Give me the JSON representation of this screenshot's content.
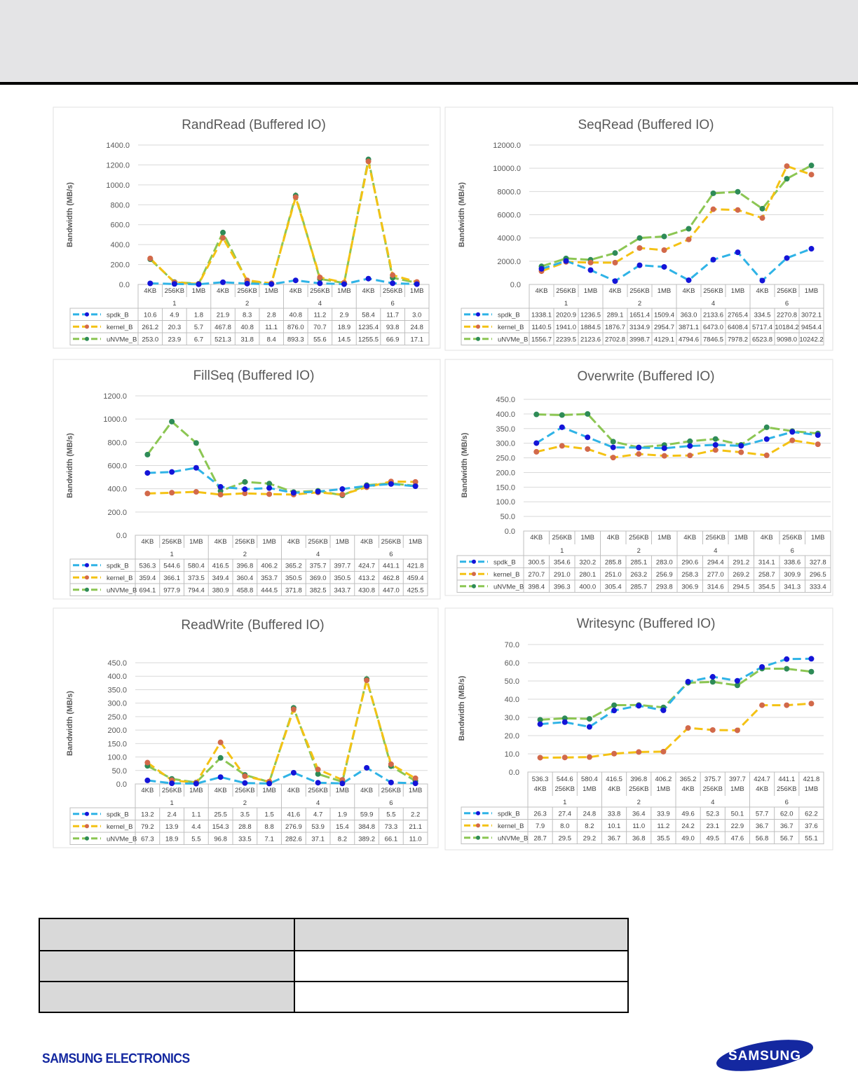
{
  "legend_series": [
    "spdk_B",
    "kernel_B",
    "uNVMe_B"
  ],
  "colors": {
    "spdk_line": "#2fb3e6",
    "spdk_marker": "#1414d8",
    "kernel_line": "#f4c214",
    "kernel_marker": "#d2694a",
    "unvme_line": "#8cc653",
    "unvme_marker": "#2e8b57"
  },
  "footer": {
    "company": "SAMSUNG ELECTRONICS",
    "logo_text": "SAMSUNG"
  },
  "chart_data": [
    {
      "type": "line",
      "title": "RandRead (Buffered IO)",
      "ylabel": "Bandwidth (MB/s)",
      "ylim": [
        0,
        1400
      ],
      "ystep": 200,
      "categories": [
        "4KB",
        "256KB",
        "1MB",
        "4KB",
        "256KB",
        "1MB",
        "4KB",
        "256KB",
        "1MB",
        "4KB",
        "256KB",
        "1MB"
      ],
      "groups": [
        "1",
        "2",
        "4",
        "6"
      ],
      "series": [
        {
          "name": "spdk_B",
          "values": [
            "10.6",
            "4.9",
            "1.8",
            "21.9",
            "8.3",
            "2.8",
            "40.8",
            "11.2",
            "2.9",
            "58.4",
            "11.7",
            "3.0"
          ]
        },
        {
          "name": "kernel_B",
          "values": [
            "261.2",
            "20.3",
            "5.7",
            "467.8",
            "40.8",
            "11.1",
            "876.0",
            "70.7",
            "18.9",
            "1235.4",
            "93.8",
            "24.8"
          ]
        },
        {
          "name": "uNVMe_B",
          "values": [
            "253.0",
            "23.9",
            "6.7",
            "521.3",
            "31.8",
            "8.4",
            "893.3",
            "55.6",
            "14.5",
            "1255.5",
            "66.9",
            "17.1"
          ]
        }
      ]
    },
    {
      "type": "line",
      "title": "SeqRead (Buffered IO)",
      "ylabel": "Bandwidth (MB/s)",
      "ylim": [
        0,
        12000
      ],
      "ystep": 2000,
      "categories": [
        "4KB",
        "256KB",
        "1MB",
        "4KB",
        "256KB",
        "1MB",
        "4KB",
        "256KB",
        "1MB",
        "4KB",
        "256KB",
        "1MB"
      ],
      "groups": [
        "1",
        "2",
        "4",
        "6"
      ],
      "series": [
        {
          "name": "spdk_B",
          "values": [
            "1338.1",
            "2020.9",
            "1236.5",
            "289.1",
            "1651.4",
            "1509.4",
            "363.0",
            "2133.6",
            "2765.4",
            "334.5",
            "2270.8",
            "3072.1"
          ]
        },
        {
          "name": "kernel_B",
          "values": [
            "1140.5",
            "1941.0",
            "1884.5",
            "1876.7",
            "3134.9",
            "2954.7",
            "3871.1",
            "6473.0",
            "6408.4",
            "5717.4",
            "10184.2",
            "9454.4"
          ]
        },
        {
          "name": "uNVMe_B",
          "values": [
            "1556.7",
            "2239.5",
            "2123.6",
            "2702.8",
            "3998.7",
            "4129.1",
            "4794.6",
            "7846.5",
            "7978.2",
            "6523.8",
            "9098.0",
            "10242.2"
          ]
        }
      ]
    },
    {
      "type": "line",
      "title": "FillSeq (Buffered IO)",
      "ylabel": "Bandwidth (MB/s)",
      "ylim": [
        0,
        1200
      ],
      "ystep": 200,
      "categories": [
        "4KB",
        "256KB",
        "1MB",
        "4KB",
        "256KB",
        "1MB",
        "4KB",
        "256KB",
        "1MB",
        "4KB",
        "256KB",
        "1MB"
      ],
      "groups": [
        "1",
        "2",
        "4",
        "6"
      ],
      "series": [
        {
          "name": "spdk_B",
          "values": [
            "536.3",
            "544.6",
            "580.4",
            "416.5",
            "396.8",
            "406.2",
            "365.2",
            "375.7",
            "397.7",
            "424.7",
            "441.1",
            "421.8"
          ]
        },
        {
          "name": "kernel_B",
          "values": [
            "359.4",
            "366.1",
            "373.5",
            "349.4",
            "360.4",
            "353.7",
            "350.5",
            "369.0",
            "350.5",
            "413.2",
            "462.8",
            "459.4"
          ]
        },
        {
          "name": "uNVMe_B",
          "values": [
            "694.1",
            "977.9",
            "794.4",
            "380.9",
            "458.8",
            "444.5",
            "371.8",
            "382.5",
            "343.7",
            "430.8",
            "447.0",
            "425.5"
          ]
        }
      ]
    },
    {
      "type": "line",
      "title": "Overwrite (Buffered IO)",
      "ylabel": "Bandwidth (MB/s)",
      "ylim": [
        0,
        450
      ],
      "ystep": 50,
      "categories": [
        "4KB",
        "256KB",
        "1MB",
        "4KB",
        "256KB",
        "1MB",
        "4KB",
        "256KB",
        "1MB",
        "4KB",
        "256KB",
        "1MB"
      ],
      "groups": [
        "1",
        "2",
        "4",
        "6"
      ],
      "series": [
        {
          "name": "spdk_B",
          "values": [
            "300.5",
            "354.6",
            "320.2",
            "285.8",
            "285.1",
            "283.0",
            "290.6",
            "294.4",
            "291.2",
            "314.1",
            "338.6",
            "327.8"
          ]
        },
        {
          "name": "kernel_B",
          "values": [
            "270.7",
            "291.0",
            "280.1",
            "251.0",
            "263.2",
            "256.9",
            "258.3",
            "277.0",
            "269.2",
            "258.7",
            "309.9",
            "296.5"
          ]
        },
        {
          "name": "uNVMe_B",
          "values": [
            "398.4",
            "396.3",
            "400.0",
            "305.4",
            "285.7",
            "293.8",
            "306.9",
            "314.6",
            "294.5",
            "354.5",
            "341.3",
            "333.4"
          ]
        }
      ]
    },
    {
      "type": "line",
      "title": "ReadWrite (Buffered IO)",
      "ylabel": "Bandwidth (MB/s)",
      "ylim": [
        0,
        450
      ],
      "ystep": 50,
      "categories": [
        "4KB",
        "256KB",
        "1MB",
        "4KB",
        "256KB",
        "1MB",
        "4KB",
        "256KB",
        "1MB",
        "4KB",
        "256KB",
        "1MB"
      ],
      "groups": [
        "1",
        "2",
        "4",
        "6"
      ],
      "series": [
        {
          "name": "spdk_B",
          "values": [
            "13.2",
            "2.4",
            "1.1",
            "25.5",
            "3.5",
            "1.5",
            "41.6",
            "4.7",
            "1.9",
            "59.9",
            "5.5",
            "2.2"
          ]
        },
        {
          "name": "kernel_B",
          "values": [
            "79.2",
            "13.9",
            "4.4",
            "154.3",
            "28.8",
            "8.8",
            "276.9",
            "53.9",
            "15.4",
            "384.8",
            "73.3",
            "21.1"
          ]
        },
        {
          "name": "uNVMe_B",
          "values": [
            "67.3",
            "18.9",
            "5.5",
            "96.8",
            "33.5",
            "7.1",
            "282.6",
            "37.1",
            "8.2",
            "389.2",
            "66.1",
            "11.0"
          ]
        }
      ]
    },
    {
      "type": "line",
      "title": "Writesync (Buffered IO)",
      "ylabel": "Bandwidth (MB/s)",
      "ylim": [
        0,
        70
      ],
      "ystep": 10,
      "categories": [
        "4KB",
        "256KB",
        "1MB",
        "4KB",
        "256KB",
        "1MB",
        "4KB",
        "256KB",
        "1MB",
        "4KB",
        "256KB",
        "1MB"
      ],
      "groups": [
        "1",
        "2",
        "4",
        "6"
      ],
      "extra_header": [
        "536.3",
        "544.6",
        "580.4",
        "416.5",
        "396.8",
        "406.2",
        "365.2",
        "375.7",
        "397.7",
        "424.7",
        "441.1",
        "421.8"
      ],
      "series": [
        {
          "name": "spdk_B",
          "values": [
            "26.3",
            "27.4",
            "24.8",
            "33.8",
            "36.4",
            "33.9",
            "49.6",
            "52.3",
            "50.1",
            "57.7",
            "62.0",
            "62.2"
          ]
        },
        {
          "name": "kernel_B",
          "values": [
            "7.9",
            "8.0",
            "8.2",
            "10.1",
            "11.0",
            "11.2",
            "24.2",
            "23.1",
            "22.9",
            "36.7",
            "36.7",
            "37.6"
          ]
        },
        {
          "name": "uNVMe_B",
          "values": [
            "28.7",
            "29.5",
            "29.2",
            "36.7",
            "36.8",
            "35.5",
            "49.0",
            "49.5",
            "47.6",
            "56.8",
            "56.7",
            "55.1"
          ]
        }
      ]
    }
  ]
}
